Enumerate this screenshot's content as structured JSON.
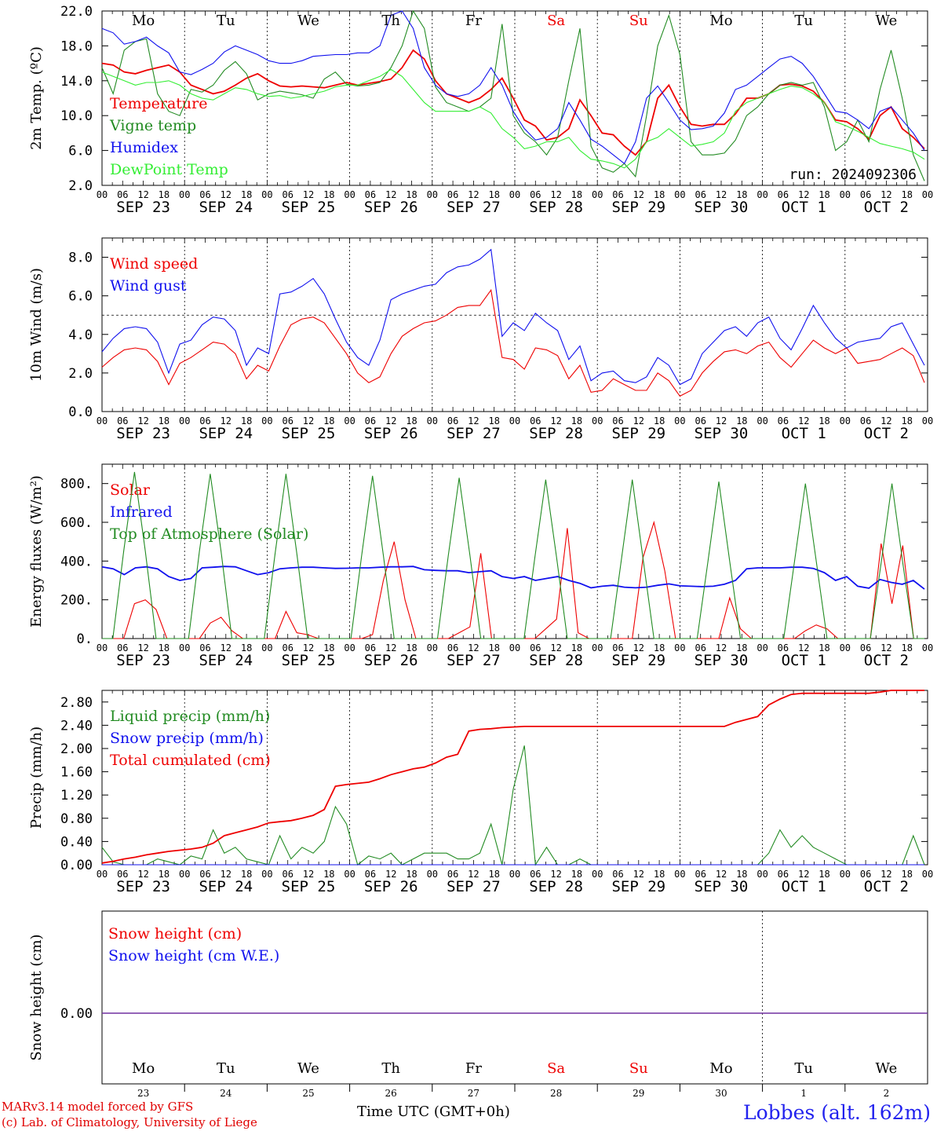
{
  "footer": {
    "credit_line1": "MARv3.14 model forced by GFS",
    "credit_line2": "(c) Lab. of Climatology, University of Liege",
    "time_label": "Time UTC (GMT+0h)",
    "station": "Lobbes (alt. 162m)"
  },
  "colors": {
    "red": "#ee0000",
    "green": "#228b22",
    "blue": "#1010ee",
    "lightgreen": "#33ee33",
    "purple": "#7030a0"
  },
  "chart_data": [
    {
      "type": "line",
      "ylabel": "2m Temp. (ºC)",
      "ylim": [
        2,
        22
      ],
      "yticks": [
        "22.0",
        "18.0",
        "14.0",
        "10.0",
        "6.0",
        "2.0"
      ],
      "day_names": [
        "Mo",
        "Tu",
        "We",
        "Th",
        "Fr",
        "Sa",
        "Su",
        "Mo",
        "Tu",
        "We"
      ],
      "hour_ticks": [
        "00",
        "06",
        "12",
        "18"
      ],
      "date_labels": [
        "SEP 23",
        "SEP 24",
        "SEP 25",
        "SEP 26",
        "SEP 27",
        "SEP 28",
        "SEP 29",
        "SEP 30",
        "OCT  1",
        "OCT  2"
      ],
      "annotation": "run: 2024092306",
      "x_unit_hours": 3,
      "series": [
        {
          "name": "Temperature",
          "color": "#ee0000",
          "values": [
            16,
            15.8,
            15,
            14.8,
            15.2,
            15.5,
            15.8,
            15,
            13.5,
            13,
            12.5,
            12.8,
            13.5,
            14.3,
            14.8,
            14,
            13.4,
            13.3,
            13.4,
            13.3,
            13.2,
            13.5,
            13.8,
            13.5,
            13.7,
            13.9,
            14.2,
            15.5,
            17.5,
            16.5,
            14,
            12.5,
            12,
            11.5,
            12,
            13,
            14.3,
            12,
            9.5,
            8.8,
            7.2,
            7.5,
            8.5,
            11.8,
            10,
            8,
            7.8,
            6.5,
            5.5,
            7,
            12,
            13.5,
            11,
            9,
            8.8,
            9,
            9,
            10.2,
            12,
            12,
            12.5,
            13.5,
            13.6,
            13.4,
            12.8,
            11.5,
            9.5,
            9.3,
            8.5,
            7.3,
            10,
            11,
            8.5,
            7.5,
            6.2
          ]
        },
        {
          "name": "Vigne temp",
          "color": "#228b22",
          "values": [
            15.5,
            12.5,
            17.5,
            18.5,
            18.8,
            12.5,
            10.5,
            10,
            13,
            12.7,
            13.5,
            15.2,
            16.2,
            14.8,
            11.8,
            12.5,
            12.8,
            12.6,
            12.4,
            12,
            14.2,
            15,
            13.6,
            13.4,
            13.5,
            13.8,
            15.5,
            18,
            22,
            20,
            13.3,
            11.5,
            11,
            10.5,
            11,
            12,
            20.5,
            10,
            8,
            7,
            5.5,
            7.5,
            14,
            20,
            6.5,
            4,
            3.5,
            4.5,
            3,
            10,
            18,
            21.5,
            17,
            7,
            5.5,
            5.5,
            5.7,
            7.2,
            10,
            11,
            12.5,
            13.5,
            13.8,
            13.5,
            13.8,
            11,
            6,
            7,
            9.5,
            7,
            13,
            17.5,
            12,
            5.5,
            2.5
          ]
        },
        {
          "name": "Humidex",
          "color": "#1010ee",
          "values": [
            20,
            19.5,
            18.2,
            18.5,
            19,
            18,
            17.2,
            15,
            14.7,
            15.3,
            16,
            17.3,
            18,
            17.5,
            17,
            16.3,
            16,
            16,
            16.3,
            16.8,
            16.9,
            17,
            17,
            17.2,
            17.2,
            18,
            21.5,
            22,
            20,
            15.5,
            13.5,
            12.5,
            12.2,
            12.5,
            13.5,
            15.5,
            13.5,
            10.5,
            8.5,
            7.2,
            7.5,
            8.5,
            11.5,
            9.5,
            7.3,
            6.5,
            5.5,
            4.5,
            7,
            12,
            13.4,
            11.5,
            9.5,
            8.4,
            8.5,
            8.8,
            10.3,
            13,
            13.5,
            14.5,
            15.5,
            16.5,
            16.8,
            16,
            14.5,
            12.5,
            10.5,
            10.3,
            9.5,
            8.5,
            10.5,
            11,
            9.5,
            8,
            6
          ]
        },
        {
          "name": "DewPoint Temp",
          "color": "#33ee33",
          "values": [
            15,
            14.5,
            14,
            13.5,
            13.8,
            13.8,
            14,
            13.5,
            12.5,
            12,
            11.8,
            12.5,
            13.2,
            13,
            12.5,
            12.2,
            12.3,
            12,
            12.2,
            12.5,
            12.8,
            13.3,
            13.5,
            13.5,
            14,
            14.5,
            15.3,
            14.5,
            13,
            11.5,
            10.5,
            10.5,
            10.5,
            10.5,
            11,
            10.3,
            8.5,
            7.5,
            6.2,
            6.5,
            7,
            7,
            7.5,
            6,
            5,
            4.8,
            4.5,
            4,
            5,
            7,
            7.5,
            8.5,
            7.5,
            6.5,
            6.7,
            7,
            8,
            10.5,
            11.5,
            12,
            12.5,
            13,
            13.4,
            13.2,
            12.5,
            11.5,
            9.3,
            8.8,
            8.2,
            7.5,
            6.8,
            6.5,
            6.2,
            5.8,
            5
          ]
        }
      ]
    },
    {
      "type": "line",
      "ylabel": "10m Wind (m/s)",
      "ylim": [
        0,
        9
      ],
      "yticks": [
        "8.0",
        "6.0",
        "4.0",
        "2.0",
        "0.0"
      ],
      "date_labels": [
        "SEP 23",
        "SEP 24",
        "SEP 25",
        "SEP 26",
        "SEP 27",
        "SEP 28",
        "SEP 29",
        "SEP 30",
        "OCT  1",
        "OCT  2"
      ],
      "reference_line": 5,
      "x_unit_hours": 3,
      "series": [
        {
          "name": "Wind speed",
          "color": "#ee0000",
          "values": [
            2.3,
            2.8,
            3.2,
            3.3,
            3.2,
            2.6,
            1.4,
            2.5,
            2.8,
            3.2,
            3.6,
            3.5,
            3,
            1.7,
            2.4,
            2.1,
            3.4,
            4.5,
            4.8,
            4.9,
            4.6,
            3.8,
            3,
            2,
            1.5,
            1.8,
            3,
            3.9,
            4.3,
            4.6,
            4.7,
            5,
            5.4,
            5.5,
            5.5,
            6.3,
            2.8,
            2.7,
            2.2,
            3.3,
            3.2,
            2.9,
            1.7,
            2.4,
            1,
            1.1,
            1.7,
            1.4,
            1.1,
            1.1,
            2,
            1.6,
            0.8,
            1.1,
            2,
            2.6,
            3.1,
            3.2,
            3,
            3.4,
            3.6,
            2.8,
            2.3,
            3,
            3.7,
            3.3,
            3,
            3.3,
            2.5,
            2.6,
            2.7,
            3,
            3.3,
            2.9,
            1.5
          ]
        },
        {
          "name": "Wind gust",
          "color": "#1010ee",
          "values": [
            3.1,
            3.8,
            4.3,
            4.4,
            4.3,
            3.6,
            2,
            3.5,
            3.7,
            4.5,
            4.9,
            4.8,
            4.2,
            2.4,
            3.3,
            3,
            6.1,
            6.2,
            6.5,
            6.9,
            6.1,
            4.8,
            3.6,
            2.8,
            2.4,
            3.7,
            5.8,
            6.1,
            6.3,
            6.5,
            6.6,
            7.2,
            7.5,
            7.6,
            7.9,
            8.4,
            3.9,
            4.6,
            4.2,
            5.1,
            4.6,
            4.2,
            2.7,
            3.4,
            1.6,
            2,
            2.1,
            1.6,
            1.5,
            1.8,
            2.8,
            2.4,
            1.4,
            1.7,
            3,
            3.6,
            4.2,
            4.4,
            3.9,
            4.6,
            4.9,
            3.8,
            3.2,
            4.3,
            5.5,
            4.6,
            3.8,
            3.3,
            3.6,
            3.7,
            3.8,
            4.4,
            4.6,
            3.5,
            2.4
          ]
        }
      ]
    },
    {
      "type": "line",
      "ylabel": "Energy fluxes (W/m²)",
      "ylim": [
        0,
        900
      ],
      "yticks": [
        "800.",
        "600.",
        "400.",
        "200.",
        "0."
      ],
      "date_labels": [
        "SEP 23",
        "SEP 24",
        "SEP 25",
        "SEP 26",
        "SEP 27",
        "SEP 28",
        "SEP 29",
        "SEP 30",
        "OCT  1",
        "OCT  2"
      ],
      "x_unit_hours": 3,
      "series": [
        {
          "name": "Solar",
          "color": "#ee0000",
          "values": [
            0,
            0,
            0,
            180,
            200,
            150,
            0,
            0,
            0,
            0,
            80,
            110,
            40,
            0,
            0,
            0,
            0,
            140,
            30,
            20,
            0,
            0,
            0,
            0,
            0,
            20,
            300,
            500,
            200,
            0,
            0,
            0,
            0,
            30,
            60,
            440,
            0,
            0,
            0,
            0,
            0,
            50,
            100,
            570,
            30,
            0,
            0,
            0,
            0,
            0,
            420,
            600,
            350,
            0,
            0,
            0,
            0,
            0,
            210,
            50,
            0,
            0,
            0,
            0,
            0,
            40,
            70,
            50,
            0,
            0,
            0,
            0,
            490,
            180,
            480,
            0,
            0
          ]
        },
        {
          "name": "Infrared",
          "color": "#1010ee",
          "values": [
            370,
            360,
            330,
            365,
            370,
            360,
            320,
            300,
            310,
            365,
            368,
            372,
            370,
            350,
            330,
            340,
            360,
            365,
            368,
            368,
            365,
            362,
            363,
            365,
            365,
            368,
            370,
            370,
            372,
            355,
            352,
            350,
            350,
            340,
            345,
            350,
            320,
            310,
            320,
            300,
            310,
            320,
            300,
            285,
            262,
            270,
            275,
            265,
            262,
            265,
            275,
            282,
            272,
            270,
            268,
            270,
            280,
            300,
            360,
            365,
            365,
            365,
            368,
            368,
            362,
            340,
            300,
            320,
            270,
            260,
            305,
            290,
            280,
            300,
            255
          ]
        },
        {
          "name": "Top of Atmosphere (Solar)",
          "color": "#228b22",
          "values": [
            0,
            0,
            450,
            860,
            450,
            0,
            0,
            0,
            0,
            450,
            850,
            450,
            0,
            0,
            0,
            0,
            440,
            850,
            440,
            0,
            0,
            0,
            0,
            0,
            430,
            840,
            430,
            0,
            0,
            0,
            0,
            0,
            430,
            830,
            430,
            0,
            0,
            0,
            0,
            0,
            420,
            820,
            420,
            0,
            0,
            0,
            0,
            0,
            410,
            820,
            410,
            0,
            0,
            0,
            0,
            0,
            400,
            810,
            400,
            0,
            0,
            0,
            0,
            0,
            400,
            800,
            400,
            0,
            0,
            0,
            0,
            0,
            390,
            800,
            390,
            0,
            0
          ]
        }
      ]
    },
    {
      "type": "line",
      "ylabel": "Precip (mm/h)",
      "ylim": [
        0,
        3.0
      ],
      "yticks": [
        "2.80",
        "2.40",
        "2.00",
        "1.60",
        "1.20",
        "0.80",
        "0.40",
        "0.00"
      ],
      "date_labels": [
        "SEP 23",
        "SEP 24",
        "SEP 25",
        "SEP 26",
        "SEP 27",
        "SEP 28",
        "SEP 29",
        "SEP 30",
        "OCT  1",
        "OCT  2"
      ],
      "x_unit_hours": 3,
      "series": [
        {
          "name": "Liquid precip (mm/h)",
          "color": "#228b22",
          "values": [
            0.3,
            0.05,
            0,
            0,
            0,
            0.1,
            0.05,
            0,
            0.15,
            0.1,
            0.6,
            0.2,
            0.3,
            0.1,
            0.05,
            0,
            0.5,
            0.1,
            0.3,
            0.2,
            0.4,
            1,
            0.7,
            0,
            0.15,
            0.1,
            0.2,
            0,
            0.1,
            0.2,
            0.2,
            0.2,
            0.1,
            0.1,
            0.2,
            0.7,
            0,
            1.3,
            2.05,
            0,
            0.3,
            0,
            0,
            0.1,
            0,
            0,
            0,
            0,
            0,
            0,
            0,
            0,
            0,
            0,
            0,
            0,
            0,
            0,
            0,
            0,
            0.2,
            0.6,
            0.3,
            0.5,
            0.3,
            0.2,
            0.1,
            0,
            0,
            0,
            0,
            0,
            0,
            0.5,
            0
          ]
        },
        {
          "name": "Snow precip (mm/h)",
          "color": "#1010ee",
          "values": [
            0,
            0,
            0,
            0,
            0,
            0,
            0,
            0,
            0,
            0,
            0,
            0,
            0,
            0,
            0,
            0,
            0,
            0,
            0,
            0,
            0,
            0,
            0,
            0,
            0,
            0,
            0,
            0,
            0,
            0,
            0,
            0,
            0,
            0,
            0,
            0,
            0,
            0,
            0,
            0,
            0,
            0,
            0,
            0,
            0,
            0,
            0,
            0,
            0,
            0,
            0,
            0,
            0,
            0,
            0,
            0,
            0,
            0,
            0,
            0,
            0,
            0,
            0,
            0,
            0,
            0,
            0,
            0,
            0,
            0,
            0,
            0,
            0,
            0,
            0
          ]
        },
        {
          "name": "Total cumulated (cm)",
          "color": "#ee0000",
          "values": [
            0.03,
            0.06,
            0.1,
            0.13,
            0.17,
            0.2,
            0.23,
            0.25,
            0.27,
            0.3,
            0.37,
            0.5,
            0.55,
            0.6,
            0.65,
            0.72,
            0.74,
            0.76,
            0.8,
            0.85,
            0.95,
            1.35,
            1.38,
            1.4,
            1.42,
            1.48,
            1.55,
            1.6,
            1.65,
            1.68,
            1.75,
            1.85,
            1.9,
            2.3,
            2.33,
            2.34,
            2.36,
            2.37,
            2.38,
            2.38,
            2.38,
            2.38,
            2.38,
            2.38,
            2.38,
            2.38,
            2.38,
            2.38,
            2.38,
            2.38,
            2.38,
            2.38,
            2.38,
            2.38,
            2.38,
            2.38,
            2.38,
            2.45,
            2.5,
            2.55,
            2.75,
            2.85,
            2.93,
            2.95,
            2.95,
            2.95,
            2.95,
            2.95,
            2.95,
            2.95,
            2.97,
            3.0,
            3.0,
            3.0,
            3.0
          ]
        }
      ]
    },
    {
      "type": "line",
      "ylabel": "Snow height (cm)",
      "yticks": [
        "0.00"
      ],
      "day_names": [
        "Mo",
        "Tu",
        "We",
        "Th",
        "Fr",
        "Sa",
        "Su",
        "Mo",
        "Tu",
        "We"
      ],
      "day_numbers": [
        "23",
        "24",
        "25",
        "26",
        "27",
        "28",
        "29",
        "30",
        "1",
        "2"
      ],
      "series": [
        {
          "name": "Snow height (cm)",
          "color": "#ee0000",
          "values": [
            0,
            0
          ]
        },
        {
          "name": "Snow height (cm W.E.)",
          "color": "#1010ee",
          "values": [
            0,
            0
          ]
        }
      ]
    }
  ]
}
